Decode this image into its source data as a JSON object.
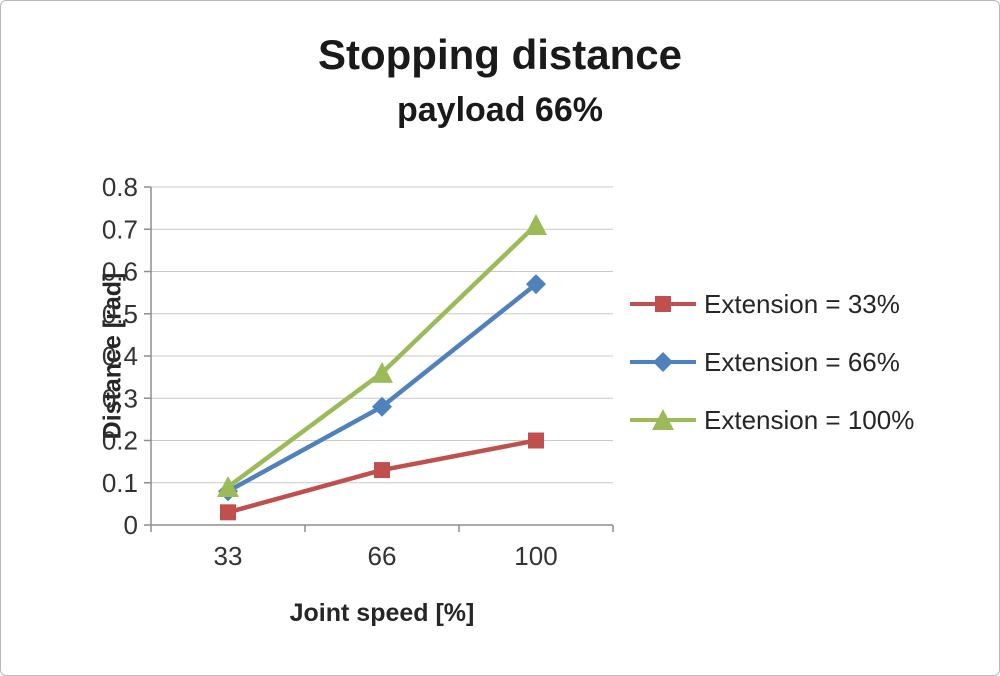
{
  "chart_data": {
    "type": "line",
    "title": "Stopping distance",
    "subtitle": "payload 66%",
    "xlabel": "Joint speed [%]",
    "ylabel": "Distance [rad]",
    "categories": [
      "33",
      "66",
      "100"
    ],
    "ylim": [
      0,
      0.8
    ],
    "yticks": [
      "0",
      "0.1",
      "0.2",
      "0.3",
      "0.4",
      "0.5",
      "0.6",
      "0.7",
      "0.8"
    ],
    "grid": "horizontal",
    "legend_position": "right",
    "series": [
      {
        "name": "Extension = 33%",
        "marker": "square",
        "color": "#c0504d",
        "values": [
          0.03,
          0.13,
          0.2
        ]
      },
      {
        "name": "Extension = 66%",
        "marker": "diamond",
        "color": "#4f81bd",
        "values": [
          0.08,
          0.28,
          0.57
        ]
      },
      {
        "name": "Extension = 100%",
        "marker": "triangle",
        "color": "#9bbb59",
        "values": [
          0.09,
          0.36,
          0.71
        ]
      }
    ]
  }
}
